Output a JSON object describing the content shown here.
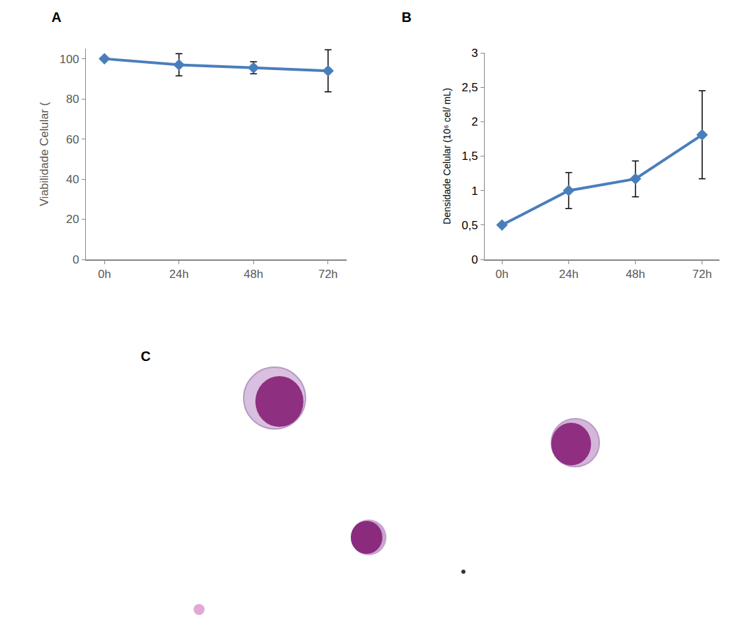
{
  "chart_data": [
    {
      "panel": "A",
      "type": "line",
      "categories": [
        "0h",
        "24h",
        "48h",
        "72h"
      ],
      "values": [
        100,
        97,
        95.5,
        94
      ],
      "errors": [
        0,
        5.5,
        3,
        10.5
      ],
      "y_label": "Viabilidade Celular (",
      "color": "#4a7ebb",
      "marker": "diamond",
      "line_style": "solid",
      "ylim": [
        0,
        105
      ],
      "yticks": [
        0,
        20,
        40,
        60,
        80,
        100
      ],
      "grid": false
    },
    {
      "panel": "B",
      "type": "line",
      "categories": [
        "0h",
        "24h",
        "48h",
        "72h"
      ],
      "values": [
        0.5,
        1.0,
        1.17,
        1.81
      ],
      "errors": [
        0,
        0.26,
        0.26,
        0.64
      ],
      "y_label": "Densidade Celular (10⁶ cel/ mL)",
      "color": "#4a7ebb",
      "marker": "diamond",
      "line_style": "solid",
      "ylim": [
        0,
        3
      ],
      "yticks": [
        0,
        {
          "value": 0.5,
          "label": "0,5"
        },
        1,
        {
          "value": 1.5,
          "label": "1,5"
        },
        2,
        {
          "value": 2.5,
          "label": "2,5"
        },
        3
      ],
      "grid": false
    }
  ],
  "image_panel": {
    "panel": "C"
  }
}
